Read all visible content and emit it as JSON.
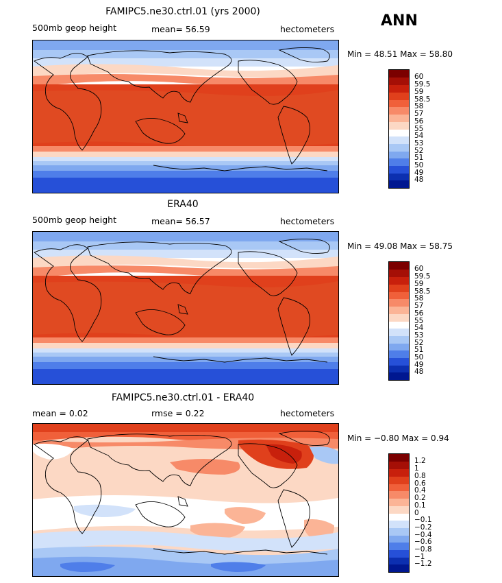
{
  "season": "ANN",
  "panels": [
    {
      "title": "FAMIPC5.ne30.ctrl.01 (yrs 2000)",
      "left_label": "500mb geop height",
      "center_label": "mean=   56.59",
      "right_label": "hectometers",
      "minmax": "Min =   48.51  Max =   58.80",
      "colorbar_ticks": [
        "60",
        "59.5",
        "59",
        "58.5",
        "58",
        "57",
        "56",
        "55",
        "54",
        "53",
        "52",
        "51",
        "50",
        "49",
        "48"
      ]
    },
    {
      "title": "ERA40",
      "left_label": "500mb geop height",
      "center_label": "mean=   56.57",
      "right_label": "hectometers",
      "minmax": "Min =   49.08  Max =   58.75",
      "colorbar_ticks": [
        "60",
        "59.5",
        "59",
        "58.5",
        "58",
        "57",
        "56",
        "55",
        "54",
        "53",
        "52",
        "51",
        "50",
        "49",
        "48"
      ]
    },
    {
      "title": "FAMIPC5.ne30.ctrl.01 - ERA40",
      "left_label": "mean =    0.02",
      "center_label": "rmse =    0.22",
      "right_label": "hectometers",
      "minmax": "Min =  −0.80  Max =    0.94",
      "colorbar_ticks": [
        "1.2",
        "1",
        "0.8",
        "0.6",
        "0.4",
        "0.2",
        "0.1",
        "0",
        "−0.1",
        "−0.2",
        "−0.4",
        "−0.6",
        "−0.8",
        "−1",
        "−1.2"
      ]
    }
  ],
  "colors": {
    "abs_scale": [
      "#7b0000",
      "#a50f06",
      "#c8200c",
      "#e0401c",
      "#f0603a",
      "#f78a68",
      "#fbb496",
      "#fcd8c4",
      "#ffffff",
      "#d2e2fa",
      "#a9c8f5",
      "#7fa8ef",
      "#4f7ee9",
      "#2650d8",
      "#0c2fb0",
      "#001790"
    ],
    "diff_scale": [
      "#7b0000",
      "#a50f06",
      "#c8200c",
      "#e0401c",
      "#f0603a",
      "#f78a68",
      "#fbb496",
      "#fcd8c4",
      "#ffffff",
      "#d2e2fa",
      "#a9c8f5",
      "#7fa8ef",
      "#4f7ee9",
      "#2650d8",
      "#0c2fb0",
      "#001790"
    ]
  }
}
